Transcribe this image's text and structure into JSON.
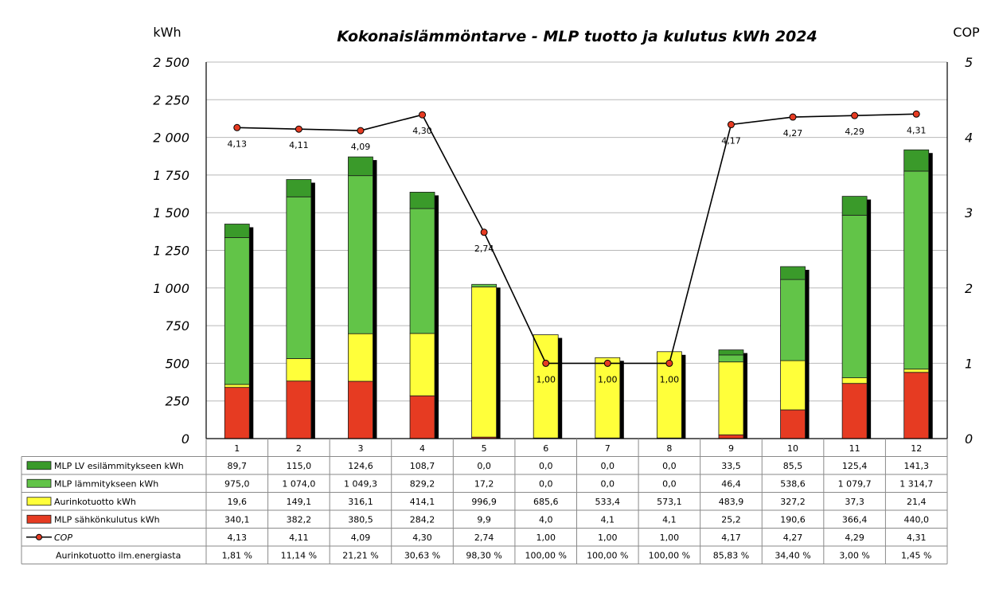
{
  "chart_data": {
    "type": "bar",
    "stacked": true,
    "title": "Kokonaislämmöntarve - MLP tuotto ja kulutus kWh 2024",
    "ylabel_left": "kWh",
    "ylabel_right": "COP",
    "ylim_left": [
      0,
      2500
    ],
    "ylim_right": [
      0,
      5
    ],
    "yticks_left": [
      "2 500",
      "2 250",
      "2 000",
      "1 750",
      "1 500",
      "1 250",
      "1 000",
      "750",
      "500",
      "250",
      "0"
    ],
    "yticks_right": [
      "5",
      "4",
      "3",
      "2",
      "1",
      "0"
    ],
    "categories": [
      "1",
      "2",
      "3",
      "4",
      "5",
      "6",
      "7",
      "8",
      "9",
      "10",
      "11",
      "12"
    ],
    "series": [
      {
        "name": "MLP LV esilämmitykseen kWh",
        "color": "#3a9a2a",
        "values": [
          89.7,
          115.0,
          124.6,
          108.7,
          0.0,
          0.0,
          0.0,
          0.0,
          33.5,
          85.5,
          125.4,
          141.3
        ],
        "labels": [
          "89,7",
          "115,0",
          "124,6",
          "108,7",
          "0,0",
          "0,0",
          "0,0",
          "0,0",
          "33,5",
          "85,5",
          "125,4",
          "141,3"
        ]
      },
      {
        "name": "MLP lämmitykseen kWh",
        "color": "#62c448",
        "values": [
          975.0,
          1074.0,
          1049.3,
          829.2,
          17.2,
          0.0,
          0.0,
          0.0,
          46.4,
          538.6,
          1079.7,
          1314.7
        ],
        "labels": [
          "975,0",
          "1 074,0",
          "1 049,3",
          "829,2",
          "17,2",
          "0,0",
          "0,0",
          "0,0",
          "46,4",
          "538,6",
          "1 079,7",
          "1 314,7"
        ]
      },
      {
        "name": "Aurinkotuotto kWh",
        "color": "#ffff3a",
        "values": [
          19.6,
          149.1,
          316.1,
          414.1,
          996.9,
          685.6,
          533.4,
          573.1,
          483.9,
          327.2,
          37.3,
          21.4
        ],
        "labels": [
          "19,6",
          "149,1",
          "316,1",
          "414,1",
          "996,9",
          "685,6",
          "533,4",
          "573,1",
          "483,9",
          "327,2",
          "37,3",
          "21,4"
        ]
      },
      {
        "name": "MLP sähkönkulutus kWh",
        "color": "#e63b22",
        "values": [
          340.1,
          382.2,
          380.5,
          284.2,
          9.9,
          4.0,
          4.1,
          4.1,
          25.2,
          190.6,
          366.4,
          440.0
        ],
        "labels": [
          "340,1",
          "382,2",
          "380,5",
          "284,2",
          "9,9",
          "4,0",
          "4,1",
          "4,1",
          "25,2",
          "190,6",
          "366,4",
          "440,0"
        ]
      }
    ],
    "cop": {
      "name": "COP",
      "color": "#e63b22",
      "values": [
        4.13,
        4.11,
        4.09,
        4.3,
        2.74,
        1.0,
        1.0,
        1.0,
        4.17,
        4.27,
        4.29,
        4.31
      ],
      "labels": [
        "4,13",
        "4,11",
        "4,09",
        "4,30",
        "2,74",
        "1,00",
        "1,00",
        "1,00",
        "4,17",
        "4,27",
        "4,29",
        "4,31"
      ]
    },
    "share": {
      "name": "Aurinkotuotto ilm.energiasta",
      "labels": [
        "1,81 %",
        "11,14 %",
        "21,21 %",
        "30,63 %",
        "98,30 %",
        "100,00 %",
        "100,00 %",
        "100,00 %",
        "85,83 %",
        "34,40 %",
        "3,00 %",
        "1,45 %"
      ]
    }
  }
}
